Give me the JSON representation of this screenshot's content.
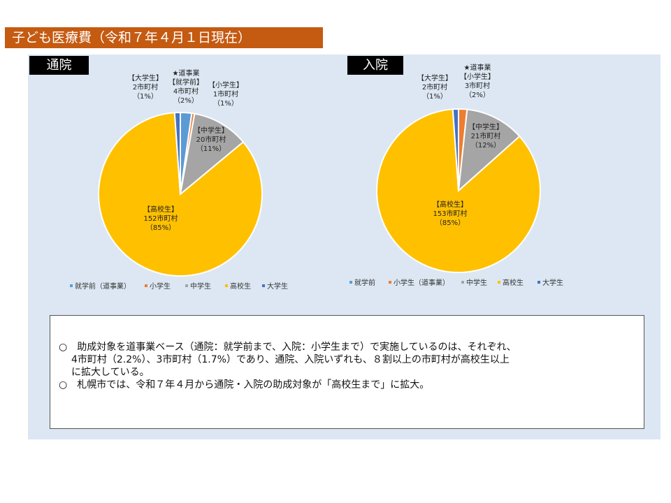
{
  "title": "子ども医療費（令和７年４月１日現在）",
  "colors": {
    "title_bg": "#c55a11",
    "panel_bg": "#dce7f3",
    "shugakumae": "#5b9bd5",
    "shogakusei": "#ed7d31",
    "chugakusei": "#a5a5a5",
    "kokosei": "#ffc000",
    "daigakusei": "#4472c4"
  },
  "chart_data": [
    {
      "type": "pie",
      "title": "通院",
      "categories": [
        "就学前（道事業）",
        "小学生",
        "中学生",
        "高校生",
        "大学生"
      ],
      "values": [
        4,
        1,
        20,
        152,
        2
      ],
      "legend": [
        "就学前（道事業）",
        "小学生",
        "中学生",
        "高校生",
        "大学生"
      ],
      "labels": [
        {
          "key": "shugakumae",
          "lines": [
            "★道事業",
            "【就学前】",
            "4市町村",
            "（2%）"
          ]
        },
        {
          "key": "shogakusei",
          "lines": [
            "【小学生】",
            "1市町村",
            "（1%）"
          ]
        },
        {
          "key": "chugakusei",
          "lines": [
            "【中学生】",
            "20市町村",
            "（11%）"
          ]
        },
        {
          "key": "kokosei",
          "lines": [
            "【高校生】",
            "152市町村",
            "（85%）"
          ]
        },
        {
          "key": "daigakusei",
          "lines": [
            "【大学生】",
            "2市町村",
            "（1%）"
          ]
        }
      ]
    },
    {
      "type": "pie",
      "title": "入院",
      "categories": [
        "就学前",
        "小学生（道事業）",
        "中学生",
        "高校生",
        "大学生"
      ],
      "values": [
        0,
        3,
        21,
        153,
        2
      ],
      "legend": [
        "就学前",
        "小学生（道事業）",
        "中学生",
        "高校生",
        "大学生"
      ],
      "labels": [
        {
          "key": "shogakusei",
          "lines": [
            "★道事業",
            "【小学生】",
            "3市町村",
            "（2%）"
          ]
        },
        {
          "key": "chugakusei",
          "lines": [
            "【中学生】",
            "21市町村",
            "（12%）"
          ]
        },
        {
          "key": "kokosei",
          "lines": [
            "【高校生】",
            "153市町村",
            "（85%）"
          ]
        },
        {
          "key": "daigakusei",
          "lines": [
            "【大学生】",
            "2市町村",
            "（1%）"
          ]
        }
      ]
    }
  ],
  "notes": [
    "○　助成対象を道事業ベース（通院：就学前まで、入院：小学生まで）で実施しているのは、それぞれ、",
    "4市町村（2.2%）、3市町村（1.7%）であり、通院、入院いずれも、８割以上の市町村が高校生以上",
    "に拡大している。",
    "○　札幌市では、令和７年４月から通院・入院の助成対象が「高校生まで」に拡大。"
  ]
}
